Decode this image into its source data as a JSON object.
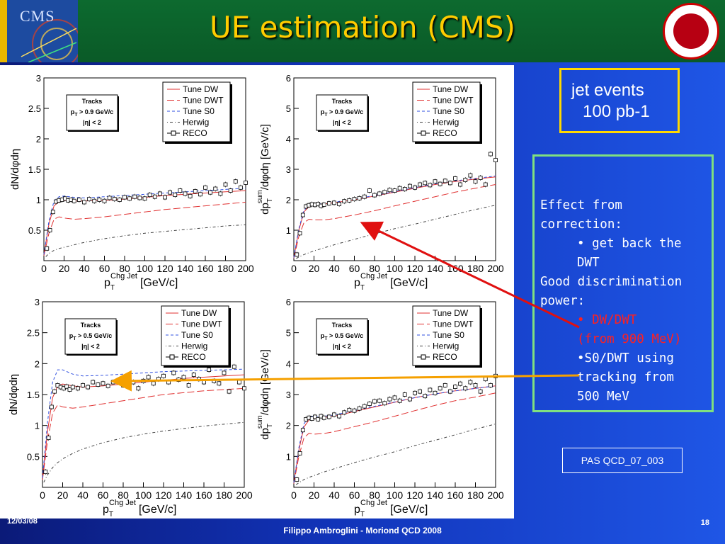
{
  "slide": {
    "title": "UE estimation (CMS)",
    "logo_text": "CMS",
    "jet_events": [
      "jet events",
      "100 pb-1"
    ],
    "effect_box": {
      "l1": "Effect from",
      "l2": "correction:",
      "l3": "• get back the",
      "l4": "DWT",
      "l5": "Good discrimination",
      "l6": "power:",
      "l7": "• DW/DWT",
      "l8": "(from 900 MeV)",
      "l9": "•S0/DWT using",
      "l10": "tracking from",
      "l11": "500 MeV"
    },
    "ref": "PAS QCD_07_003",
    "footer": {
      "date": "12/03/08",
      "author": "Filippo Ambroglini - Moriond QCD 2008",
      "page": "18"
    },
    "colors": {
      "title": "#ffcc00",
      "header_bg": "#0a5a27",
      "jet_box_border": "#ffd800",
      "effect_box_border": "#7fe07f",
      "emphasis": "#ff2020"
    }
  },
  "chart_data": [
    {
      "type": "line",
      "ylabel": "dN/dφdη",
      "xlabel_main": "p",
      "xlabel_sub": "T",
      "xlabel_sup": "Chg Jet",
      "xlabel_unit": "[GeV/c]",
      "xlim": [
        0,
        200
      ],
      "ylim": [
        0,
        3
      ],
      "xticks": [
        0,
        20,
        40,
        60,
        80,
        100,
        120,
        140,
        160,
        180,
        200
      ],
      "yticks": [
        0.5,
        1,
        1.5,
        2,
        2.5,
        3
      ],
      "cuts": [
        "Tracks",
        "p",
        "T",
        " > 0.9 GeV/c",
        "|η| < 2"
      ],
      "legend": [
        "Tune DW",
        "Tune DWT",
        "Tune S0",
        "Herwig",
        "RECO"
      ],
      "x": [
        0,
        5,
        10,
        15,
        20,
        30,
        40,
        60,
        80,
        100,
        120,
        140,
        160,
        180,
        200
      ],
      "series": [
        {
          "name": "Tune DW",
          "values": [
            0.1,
            0.6,
            0.9,
            0.97,
            0.99,
            0.98,
            0.98,
            0.99,
            1.01,
            1.04,
            1.07,
            1.09,
            1.11,
            1.13,
            1.15
          ]
        },
        {
          "name": "Tune DWT",
          "values": [
            0.08,
            0.45,
            0.68,
            0.72,
            0.7,
            0.68,
            0.69,
            0.72,
            0.76,
            0.8,
            0.84,
            0.87,
            0.9,
            0.93,
            0.96
          ]
        },
        {
          "name": "Tune S0",
          "values": [
            0.1,
            0.65,
            0.98,
            1.05,
            1.06,
            1.04,
            1.03,
            1.05,
            1.07,
            1.09,
            1.11,
            1.13,
            1.15,
            1.17,
            1.19
          ]
        },
        {
          "name": "Herwig",
          "values": [
            0.03,
            0.12,
            0.17,
            0.2,
            0.22,
            0.26,
            0.3,
            0.36,
            0.41,
            0.45,
            0.48,
            0.51,
            0.54,
            0.57,
            0.59
          ]
        }
      ],
      "reco": {
        "x": [
          3,
          6,
          9,
          12,
          15,
          18,
          21,
          24,
          27,
          30,
          35,
          40,
          45,
          50,
          55,
          60,
          65,
          70,
          75,
          80,
          85,
          90,
          95,
          100,
          105,
          110,
          115,
          120,
          125,
          130,
          135,
          140,
          145,
          150,
          155,
          160,
          165,
          170,
          175,
          180,
          185,
          190,
          195,
          200
        ],
        "y": [
          0.2,
          0.5,
          0.8,
          0.97,
          0.99,
          1.0,
          1.02,
          0.99,
          1.0,
          0.98,
          1.0,
          0.96,
          1.01,
          0.98,
          1.0,
          0.98,
          1.03,
          1.01,
          1.0,
          1.04,
          1.02,
          1.05,
          1.03,
          1.02,
          1.08,
          1.05,
          1.1,
          1.04,
          1.12,
          1.08,
          1.15,
          1.1,
          1.06,
          1.14,
          1.09,
          1.2,
          1.12,
          1.18,
          1.1,
          1.25,
          1.15,
          1.3,
          1.2,
          1.28
        ]
      }
    },
    {
      "type": "line",
      "ylabel_pre": "dp",
      "ylabel_sub": "T",
      "ylabel_sup": "sum",
      "ylabel_post": "/dφdη [GeV/c]",
      "xlabel_main": "p",
      "xlabel_sub": "T",
      "xlabel_sup": "Chg Jet",
      "xlabel_unit": "[GeV/c]",
      "xlim": [
        0,
        200
      ],
      "ylim": [
        0,
        6
      ],
      "xticks": [
        0,
        20,
        40,
        60,
        80,
        100,
        120,
        140,
        160,
        180,
        200
      ],
      "yticks": [
        1,
        2,
        3,
        4,
        5,
        6
      ],
      "cuts": [
        "Tracks",
        "p",
        "T",
        " > 0.9 GeV/c",
        "|η| < 2"
      ],
      "legend": [
        "Tune DW",
        "Tune DWT",
        "Tune S0",
        "Herwig",
        "RECO"
      ],
      "x": [
        0,
        5,
        10,
        15,
        20,
        30,
        40,
        60,
        80,
        100,
        120,
        140,
        160,
        180,
        200
      ],
      "series": [
        {
          "name": "Tune DW",
          "values": [
            0.1,
            1.0,
            1.6,
            1.78,
            1.82,
            1.86,
            1.9,
            2.0,
            2.12,
            2.25,
            2.38,
            2.5,
            2.6,
            2.68,
            2.75
          ]
        },
        {
          "name": "Tune DWT",
          "values": [
            0.08,
            0.8,
            1.25,
            1.36,
            1.34,
            1.34,
            1.38,
            1.5,
            1.64,
            1.8,
            1.95,
            2.1,
            2.25,
            2.38,
            2.5
          ]
        },
        {
          "name": "Tune S0",
          "values": [
            0.1,
            1.05,
            1.65,
            1.82,
            1.86,
            1.88,
            1.92,
            2.02,
            2.14,
            2.27,
            2.4,
            2.52,
            2.62,
            2.7,
            2.78
          ]
        },
        {
          "name": "Herwig",
          "values": [
            0.02,
            0.12,
            0.2,
            0.26,
            0.32,
            0.42,
            0.52,
            0.7,
            0.88,
            1.05,
            1.2,
            1.36,
            1.52,
            1.68,
            1.82
          ]
        }
      ],
      "reco": {
        "x": [
          3,
          6,
          9,
          12,
          15,
          18,
          21,
          24,
          27,
          30,
          35,
          40,
          45,
          50,
          55,
          60,
          65,
          70,
          75,
          80,
          85,
          90,
          95,
          100,
          105,
          110,
          115,
          120,
          125,
          130,
          135,
          140,
          145,
          150,
          155,
          160,
          165,
          170,
          175,
          180,
          185,
          190,
          195,
          200
        ],
        "y": [
          0.2,
          0.9,
          1.5,
          1.78,
          1.82,
          1.85,
          1.83,
          1.86,
          1.8,
          1.84,
          1.88,
          1.9,
          1.86,
          1.95,
          1.98,
          2.02,
          2.05,
          2.1,
          2.3,
          2.15,
          2.2,
          2.25,
          2.32,
          2.3,
          2.38,
          2.35,
          2.45,
          2.4,
          2.5,
          2.55,
          2.48,
          2.6,
          2.52,
          2.62,
          2.55,
          2.7,
          2.5,
          2.65,
          2.8,
          2.6,
          2.72,
          2.5,
          3.5,
          3.3
        ]
      }
    },
    {
      "type": "line",
      "ylabel": "dN/dφdη",
      "xlabel_main": "p",
      "xlabel_sub": "T",
      "xlabel_sup": "Chg Jet",
      "xlabel_unit": "[GeV/c]",
      "xlim": [
        0,
        200
      ],
      "ylim": [
        0,
        3
      ],
      "xticks": [
        0,
        20,
        40,
        60,
        80,
        100,
        120,
        140,
        160,
        180,
        200
      ],
      "yticks": [
        0.5,
        1,
        1.5,
        2,
        2.5,
        3
      ],
      "cuts": [
        "Tracks",
        "p",
        "T",
        " > 0.5 GeV/c",
        "|η| < 2"
      ],
      "legend": [
        "Tune DW",
        "Tune DWT",
        "Tune S0",
        "Herwig",
        "RECO"
      ],
      "x": [
        0,
        5,
        10,
        15,
        20,
        30,
        40,
        60,
        80,
        100,
        120,
        140,
        160,
        180,
        200
      ],
      "series": [
        {
          "name": "Tune DW",
          "values": [
            0.15,
            0.9,
            1.45,
            1.64,
            1.67,
            1.64,
            1.62,
            1.64,
            1.67,
            1.7,
            1.73,
            1.76,
            1.78,
            1.8,
            1.82
          ]
        },
        {
          "name": "Tune DWT",
          "values": [
            0.12,
            0.75,
            1.2,
            1.33,
            1.3,
            1.28,
            1.3,
            1.35,
            1.4,
            1.45,
            1.5,
            1.53,
            1.56,
            1.58,
            1.6
          ]
        },
        {
          "name": "Tune S0",
          "values": [
            0.15,
            1.05,
            1.7,
            1.9,
            1.9,
            1.83,
            1.8,
            1.81,
            1.83,
            1.85,
            1.87,
            1.88,
            1.89,
            1.9,
            1.91
          ]
        },
        {
          "name": "Herwig",
          "values": [
            0.04,
            0.2,
            0.32,
            0.4,
            0.46,
            0.55,
            0.62,
            0.72,
            0.8,
            0.86,
            0.91,
            0.95,
            0.99,
            1.02,
            1.05
          ]
        }
      ],
      "reco": {
        "x": [
          3,
          6,
          9,
          12,
          15,
          18,
          21,
          24,
          27,
          30,
          35,
          40,
          45,
          50,
          55,
          60,
          65,
          70,
          75,
          80,
          85,
          90,
          95,
          100,
          105,
          110,
          115,
          120,
          125,
          130,
          135,
          140,
          145,
          150,
          155,
          160,
          165,
          170,
          175,
          180,
          185,
          190,
          195,
          200
        ],
        "y": [
          0.25,
          0.8,
          1.3,
          1.55,
          1.65,
          1.62,
          1.6,
          1.63,
          1.58,
          1.62,
          1.6,
          1.65,
          1.62,
          1.7,
          1.66,
          1.68,
          1.64,
          1.7,
          1.72,
          1.65,
          1.75,
          1.7,
          1.6,
          1.72,
          1.78,
          1.68,
          1.75,
          1.8,
          1.7,
          1.85,
          1.74,
          1.78,
          1.65,
          1.82,
          1.75,
          1.7,
          1.9,
          1.72,
          1.68,
          1.85,
          1.55,
          1.95,
          1.7,
          1.6
        ]
      }
    },
    {
      "type": "line",
      "ylabel_pre": "dp",
      "ylabel_sub": "T",
      "ylabel_sup": "sum",
      "ylabel_post": "/dφdη [GeV/c]",
      "xlabel_main": "p",
      "xlabel_sub": "T",
      "xlabel_sup": "Chg Jet",
      "xlabel_unit": "[GeV/c]",
      "xlim": [
        0,
        200
      ],
      "ylim": [
        0,
        6
      ],
      "xticks": [
        0,
        20,
        40,
        60,
        80,
        100,
        120,
        140,
        160,
        180,
        200
      ],
      "yticks": [
        1,
        2,
        3,
        4,
        5,
        6
      ],
      "cuts": [
        "Tracks",
        "p",
        "T",
        " > 0.5 GeV/c",
        "|η| < 2"
      ],
      "legend": [
        "Tune DW",
        "Tune DWT",
        "Tune S0",
        "Herwig",
        "RECO"
      ],
      "x": [
        0,
        5,
        10,
        15,
        20,
        30,
        40,
        60,
        80,
        100,
        120,
        140,
        160,
        180,
        200
      ],
      "series": [
        {
          "name": "Tune DW",
          "values": [
            0.15,
            1.2,
            1.95,
            2.18,
            2.22,
            2.26,
            2.3,
            2.45,
            2.6,
            2.75,
            2.9,
            3.02,
            3.12,
            3.2,
            3.28
          ]
        },
        {
          "name": "Tune DWT",
          "values": [
            0.12,
            1.0,
            1.6,
            1.75,
            1.72,
            1.74,
            1.8,
            1.96,
            2.12,
            2.3,
            2.48,
            2.65,
            2.8,
            2.92,
            3.05
          ]
        },
        {
          "name": "Tune S0",
          "values": [
            0.15,
            1.28,
            2.05,
            2.28,
            2.3,
            2.3,
            2.34,
            2.48,
            2.62,
            2.76,
            2.9,
            3.02,
            3.12,
            3.2,
            3.28
          ]
        },
        {
          "name": "Herwig",
          "values": [
            0.03,
            0.15,
            0.25,
            0.32,
            0.38,
            0.5,
            0.6,
            0.8,
            0.98,
            1.15,
            1.35,
            1.52,
            1.7,
            1.88,
            2.05
          ]
        }
      ],
      "reco": {
        "x": [
          3,
          6,
          9,
          12,
          15,
          18,
          21,
          24,
          27,
          30,
          35,
          40,
          45,
          50,
          55,
          60,
          65,
          70,
          75,
          80,
          85,
          90,
          95,
          100,
          105,
          110,
          115,
          120,
          125,
          130,
          135,
          140,
          145,
          150,
          155,
          160,
          165,
          170,
          175,
          180,
          185,
          190,
          195,
          200
        ],
        "y": [
          0.25,
          1.1,
          1.85,
          2.2,
          2.25,
          2.22,
          2.28,
          2.2,
          2.3,
          2.25,
          2.28,
          2.35,
          2.3,
          2.42,
          2.5,
          2.48,
          2.55,
          2.62,
          2.7,
          2.78,
          2.8,
          2.72,
          2.85,
          2.9,
          2.8,
          3.0,
          2.85,
          3.05,
          3.1,
          2.95,
          3.15,
          3.05,
          3.2,
          3.3,
          3.1,
          3.25,
          3.35,
          3.2,
          3.4,
          3.3,
          3.1,
          3.5,
          3.3,
          3.6
        ]
      }
    }
  ]
}
